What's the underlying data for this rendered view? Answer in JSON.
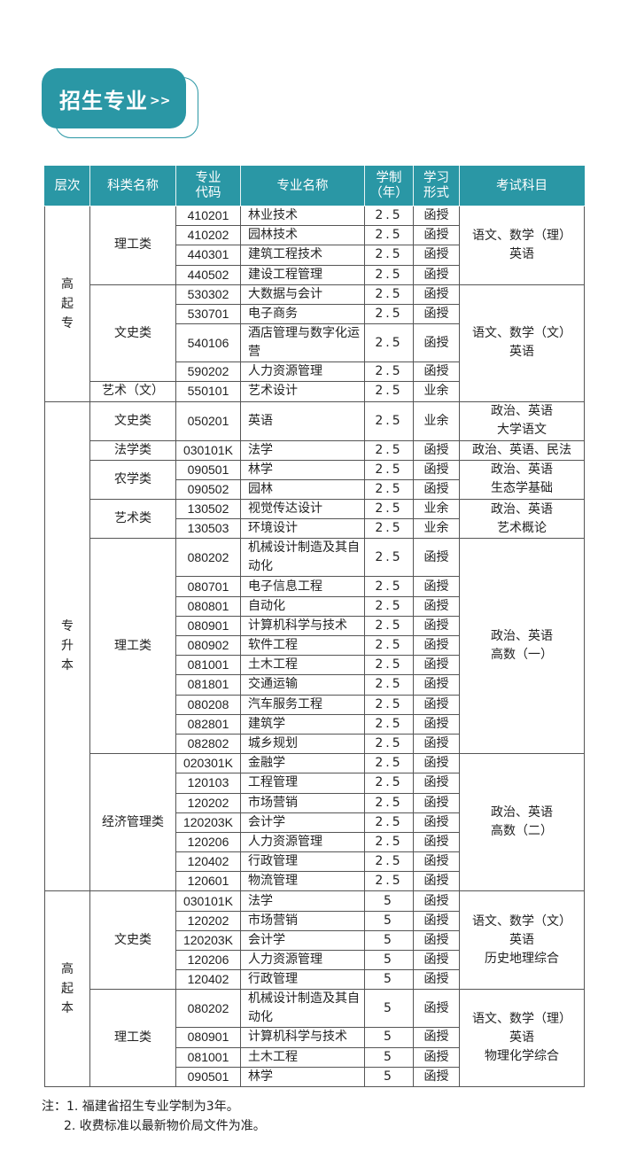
{
  "title": {
    "text": "招生专业",
    "arrows": ">>"
  },
  "colors": {
    "accent": "#2a97a5"
  },
  "headers": [
    "层次",
    "科类名称",
    "专业\n代码",
    "专业名称",
    "学制\n（年）",
    "学习\n形式",
    "考试科目"
  ],
  "rows": [
    {
      "level": "高起专",
      "category": "理工类",
      "code": "410201",
      "name": "林业技术",
      "years": "2.5",
      "mode": "函授",
      "exam": "语文、数学（理）\n英语"
    },
    {
      "level": "高起专",
      "category": "理工类",
      "code": "410202",
      "name": "园林技术",
      "years": "2.5",
      "mode": "函授",
      "exam": "语文、数学（理）\n英语"
    },
    {
      "level": "高起专",
      "category": "理工类",
      "code": "440301",
      "name": "建筑工程技术",
      "years": "2.5",
      "mode": "函授",
      "exam": "语文、数学（理）\n英语"
    },
    {
      "level": "高起专",
      "category": "理工类",
      "code": "440502",
      "name": "建设工程管理",
      "years": "2.5",
      "mode": "函授",
      "exam": "语文、数学（理）\n英语"
    },
    {
      "level": "高起专",
      "category": "文史类",
      "code": "530302",
      "name": "大数据与会计",
      "years": "2.5",
      "mode": "函授",
      "exam": "语文、数学（文）\n英语"
    },
    {
      "level": "高起专",
      "category": "文史类",
      "code": "530701",
      "name": "电子商务",
      "years": "2.5",
      "mode": "函授",
      "exam": "语文、数学（文）\n英语"
    },
    {
      "level": "高起专",
      "category": "文史类",
      "code": "540106",
      "name": "酒店管理与数字化运营",
      "years": "2.5",
      "mode": "函授",
      "exam": "语文、数学（文）\n英语"
    },
    {
      "level": "高起专",
      "category": "文史类",
      "code": "590202",
      "name": "人力资源管理",
      "years": "2.5",
      "mode": "函授",
      "exam": "语文、数学（文）\n英语"
    },
    {
      "level": "高起专",
      "category": "艺术（文）",
      "code": "550101",
      "name": "艺术设计",
      "years": "2.5",
      "mode": "业余",
      "exam": "语文、数学（文）\n英语"
    },
    {
      "level": "专升本",
      "category": "文史类",
      "code": "050201",
      "name": "英语",
      "years": "2.5",
      "mode": "业余",
      "exam": "政治、英语\n大学语文",
      "tall": true
    },
    {
      "level": "专升本",
      "category": "法学类",
      "code": "030101K",
      "name": "法学",
      "years": "2.5",
      "mode": "函授",
      "exam": "政治、英语、民法"
    },
    {
      "level": "专升本",
      "category": "农学类",
      "code": "090501",
      "name": "林学",
      "years": "2.5",
      "mode": "函授",
      "exam": "政治、英语\n生态学基础"
    },
    {
      "level": "专升本",
      "category": "农学类",
      "code": "090502",
      "name": "园林",
      "years": "2.5",
      "mode": "函授",
      "exam": "政治、英语\n生态学基础"
    },
    {
      "level": "专升本",
      "category": "艺术类",
      "code": "130502",
      "name": "视觉传达设计",
      "years": "2.5",
      "mode": "业余",
      "exam": "政治、英语\n艺术概论"
    },
    {
      "level": "专升本",
      "category": "艺术类",
      "code": "130503",
      "name": "环境设计",
      "years": "2.5",
      "mode": "业余",
      "exam": "政治、英语\n艺术概论"
    },
    {
      "level": "专升本",
      "category": "理工类",
      "code": "080202",
      "name": "机械设计制造及其自动化",
      "years": "2.5",
      "mode": "函授",
      "exam": "政治、英语\n高数（一）"
    },
    {
      "level": "专升本",
      "category": "理工类",
      "code": "080701",
      "name": "电子信息工程",
      "years": "2.5",
      "mode": "函授",
      "exam": "政治、英语\n高数（一）"
    },
    {
      "level": "专升本",
      "category": "理工类",
      "code": "080801",
      "name": "自动化",
      "years": "2.5",
      "mode": "函授",
      "exam": "政治、英语\n高数（一）"
    },
    {
      "level": "专升本",
      "category": "理工类",
      "code": "080901",
      "name": "计算机科学与技术",
      "years": "2.5",
      "mode": "函授",
      "exam": "政治、英语\n高数（一）"
    },
    {
      "level": "专升本",
      "category": "理工类",
      "code": "080902",
      "name": "软件工程",
      "years": "2.5",
      "mode": "函授",
      "exam": "政治、英语\n高数（一）"
    },
    {
      "level": "专升本",
      "category": "理工类",
      "code": "081001",
      "name": "土木工程",
      "years": "2.5",
      "mode": "函授",
      "exam": "政治、英语\n高数（一）"
    },
    {
      "level": "专升本",
      "category": "理工类",
      "code": "081801",
      "name": "交通运输",
      "years": "2.5",
      "mode": "函授",
      "exam": "政治、英语\n高数（一）"
    },
    {
      "level": "专升本",
      "category": "理工类",
      "code": "080208",
      "name": "汽车服务工程",
      "years": "2.5",
      "mode": "函授",
      "exam": "政治、英语\n高数（一）"
    },
    {
      "level": "专升本",
      "category": "理工类",
      "code": "082801",
      "name": "建筑学",
      "years": "2.5",
      "mode": "函授",
      "exam": "政治、英语\n高数（一）"
    },
    {
      "level": "专升本",
      "category": "理工类",
      "code": "082802",
      "name": "城乡规划",
      "years": "2.5",
      "mode": "函授",
      "exam": "政治、英语\n高数（一）"
    },
    {
      "level": "专升本",
      "category": "经济管理类",
      "code": "020301K",
      "name": "金融学",
      "years": "2.5",
      "mode": "函授",
      "exam": "政治、英语\n高数（二）"
    },
    {
      "level": "专升本",
      "category": "经济管理类",
      "code": "120103",
      "name": "工程管理",
      "years": "2.5",
      "mode": "函授",
      "exam": "政治、英语\n高数（二）"
    },
    {
      "level": "专升本",
      "category": "经济管理类",
      "code": "120202",
      "name": "市场营销",
      "years": "2.5",
      "mode": "函授",
      "exam": "政治、英语\n高数（二）"
    },
    {
      "level": "专升本",
      "category": "经济管理类",
      "code": "120203K",
      "name": "会计学",
      "years": "2.5",
      "mode": "函授",
      "exam": "政治、英语\n高数（二）"
    },
    {
      "level": "专升本",
      "category": "经济管理类",
      "code": "120206",
      "name": "人力资源管理",
      "years": "2.5",
      "mode": "函授",
      "exam": "政治、英语\n高数（二）"
    },
    {
      "level": "专升本",
      "category": "经济管理类",
      "code": "120402",
      "name": "行政管理",
      "years": "2.5",
      "mode": "函授",
      "exam": "政治、英语\n高数（二）"
    },
    {
      "level": "专升本",
      "category": "经济管理类",
      "code": "120601",
      "name": "物流管理",
      "years": "2.5",
      "mode": "函授",
      "exam": "政治、英语\n高数（二）"
    },
    {
      "level": "高起本",
      "category": "文史类",
      "code": "030101K",
      "name": "法学",
      "years": "5",
      "mode": "函授",
      "exam": "语文、数学（文）\n英语\n历史地理综合"
    },
    {
      "level": "高起本",
      "category": "文史类",
      "code": "120202",
      "name": "市场营销",
      "years": "5",
      "mode": "函授",
      "exam": "语文、数学（文）\n英语\n历史地理综合"
    },
    {
      "level": "高起本",
      "category": "文史类",
      "code": "120203K",
      "name": "会计学",
      "years": "5",
      "mode": "函授",
      "exam": "语文、数学（文）\n英语\n历史地理综合"
    },
    {
      "level": "高起本",
      "category": "文史类",
      "code": "120206",
      "name": "人力资源管理",
      "years": "5",
      "mode": "函授",
      "exam": "语文、数学（文）\n英语\n历史地理综合"
    },
    {
      "level": "高起本",
      "category": "文史类",
      "code": "120402",
      "name": "行政管理",
      "years": "5",
      "mode": "函授",
      "exam": "语文、数学（文）\n英语\n历史地理综合"
    },
    {
      "level": "高起本",
      "category": "理工类",
      "code": "080202",
      "name": "机械设计制造及其自动化",
      "years": "5",
      "mode": "函授",
      "exam": "语文、数学（理）\n英语\n物理化学综合"
    },
    {
      "level": "高起本",
      "category": "理工类",
      "code": "080901",
      "name": "计算机科学与技术",
      "years": "5",
      "mode": "函授",
      "exam": "语文、数学（理）\n英语\n物理化学综合"
    },
    {
      "level": "高起本",
      "category": "理工类",
      "code": "081001",
      "name": "土木工程",
      "years": "5",
      "mode": "函授",
      "exam": "语文、数学（理）\n英语\n物理化学综合"
    },
    {
      "level": "高起本",
      "category": "理工类",
      "code": "090501",
      "name": "林学",
      "years": "5",
      "mode": "函授",
      "exam": "语文、数学（理）\n英语\n物理化学综合"
    }
  ],
  "notes": [
    "注：1. 福建省招生专业学制为3年。",
    "2. 收费标准以最新物价局文件为准。"
  ]
}
